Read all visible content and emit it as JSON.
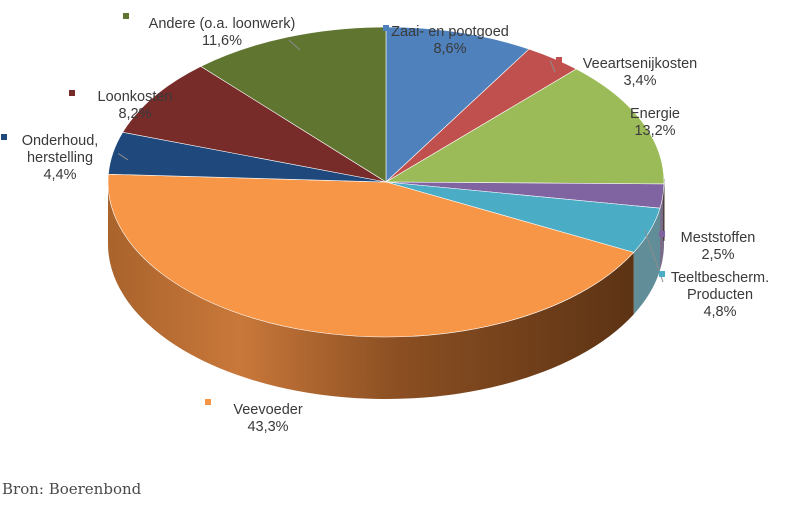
{
  "chart_data": {
    "type": "pie",
    "title": "",
    "slices": [
      {
        "label": "Zaai- en pootgoed",
        "value_label": "8,6%",
        "value": 8.6,
        "color": "#4f81bd"
      },
      {
        "label": "Veeartsenijkosten",
        "value_label": "3,4%",
        "value": 3.4,
        "color": "#c0504d"
      },
      {
        "label": "Energie",
        "value_label": "13,2%",
        "value": 13.2,
        "color": "#9bbb59"
      },
      {
        "label": "Meststoffen",
        "value_label": "2,5%",
        "value": 2.5,
        "color": "#8064a2"
      },
      {
        "label": "Teeltbescherm. Producten",
        "value_label": "4,8%",
        "value": 4.8,
        "color": "#4bacc6"
      },
      {
        "label": "Veevoeder",
        "value_label": "43,3%",
        "value": 43.3,
        "color": "#f79646"
      },
      {
        "label": "Onderhoud, herstelling",
        "value_label": "4,4%",
        "value": 4.4,
        "color": "#1f497d"
      },
      {
        "label": "Loonkosten",
        "value_label": "8,2%",
        "value": 8.2,
        "color": "#772c2a"
      },
      {
        "label": "Andere (o.a. loonwerk)",
        "value_label": "11,6%",
        "value": 11.6,
        "color": "#5f7530"
      }
    ]
  },
  "source_text": "Bron: Boerenbond"
}
